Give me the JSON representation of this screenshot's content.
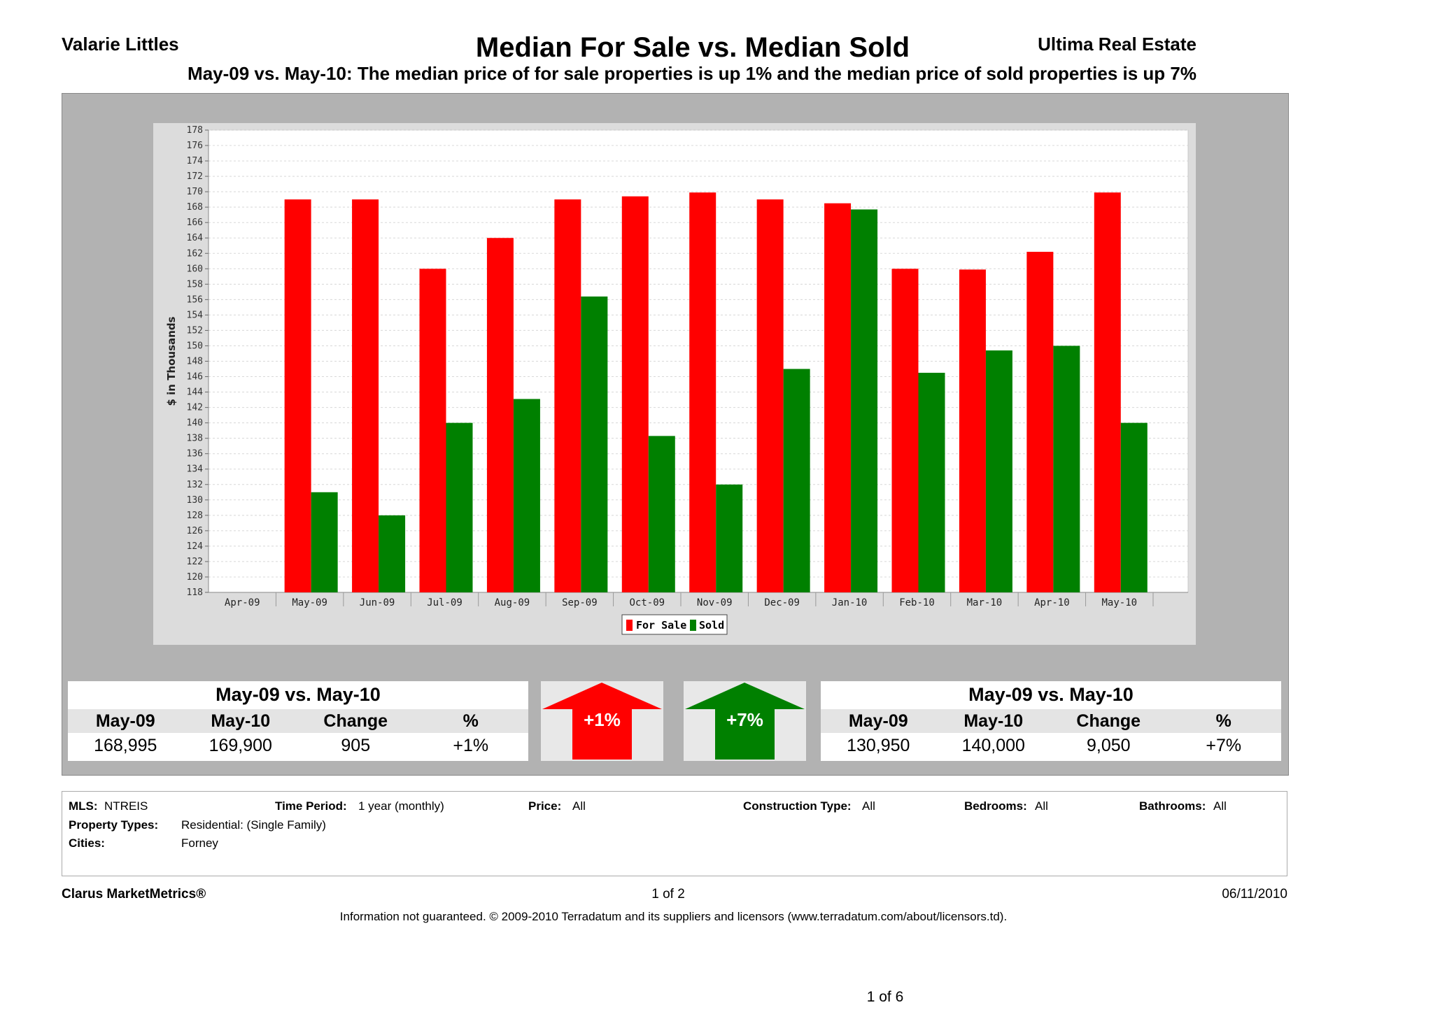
{
  "header": {
    "agent": "Valarie Littles",
    "company": "Ultima Real Estate",
    "title": "Median For Sale vs. Median Sold",
    "subtitle": "May-09 vs. May-10:  The median price of for sale properties is up 1% and the median price of sold properties is up 7%"
  },
  "colors": {
    "for_sale": "#ff0000",
    "sold": "#008000"
  },
  "chart_data": {
    "type": "bar",
    "title": "Median For Sale vs. Median Sold",
    "ylabel": "$ in Thousands",
    "xlabel": "",
    "ylim": [
      118,
      178
    ],
    "y_tick_step": 2,
    "categories": [
      "Apr-09",
      "May-09",
      "Jun-09",
      "Jul-09",
      "Aug-09",
      "Sep-09",
      "Oct-09",
      "Nov-09",
      "Dec-09",
      "Jan-10",
      "Feb-10",
      "Mar-10",
      "Apr-10",
      "May-10"
    ],
    "series": [
      {
        "name": "For Sale",
        "values": [
          null,
          169.0,
          169.0,
          160.0,
          164.0,
          169.0,
          169.4,
          169.9,
          169.0,
          168.5,
          160.0,
          159.9,
          162.2,
          169.9
        ]
      },
      {
        "name": "Sold",
        "values": [
          null,
          131.0,
          128.0,
          140.0,
          143.1,
          156.4,
          138.3,
          132.0,
          147.0,
          167.7,
          146.5,
          149.4,
          150.0,
          140.0
        ]
      }
    ],
    "legend": [
      "For Sale",
      "Sold"
    ],
    "legend_position": "bottom-center",
    "grid": true
  },
  "stats_for_sale": {
    "title": "May-09 vs. May-10",
    "headers": [
      "May-09",
      "May-10",
      "Change",
      "%"
    ],
    "values": [
      "168,995",
      "169,900",
      "905",
      "+1%"
    ],
    "arrow_label": "+1%",
    "arrow_color": "#ff0000"
  },
  "stats_sold": {
    "title": "May-09 vs. May-10",
    "headers": [
      "May-09",
      "May-10",
      "Change",
      "%"
    ],
    "values": [
      "130,950",
      "140,000",
      "9,050",
      "+7%"
    ],
    "arrow_label": "+7%",
    "arrow_color": "#008000"
  },
  "criteria": {
    "mls_label": "MLS:",
    "mls": "NTREIS",
    "time_label": "Time Period:",
    "time": "1 year (monthly)",
    "price_label": "Price:",
    "price": "All",
    "construction_label": "Construction Type:",
    "construction": "All",
    "bedrooms_label": "Bedrooms:",
    "bedrooms": "All",
    "bathrooms_label": "Bathrooms:",
    "bathrooms": "All",
    "property_types_label": "Property Types:",
    "property_types": "Residential: (Single Family)",
    "cities_label": "Cities:",
    "cities": "Forney"
  },
  "footer": {
    "brand": "Clarus MarketMetrics®",
    "page": "1 of 2",
    "date": "06/11/2010",
    "disclaimer": "Information not guaranteed.  © 2009-2010 Terradatum and its suppliers and licensors (www.terradatum.com/about/licensors.td).",
    "doc_page": "1 of 6"
  }
}
